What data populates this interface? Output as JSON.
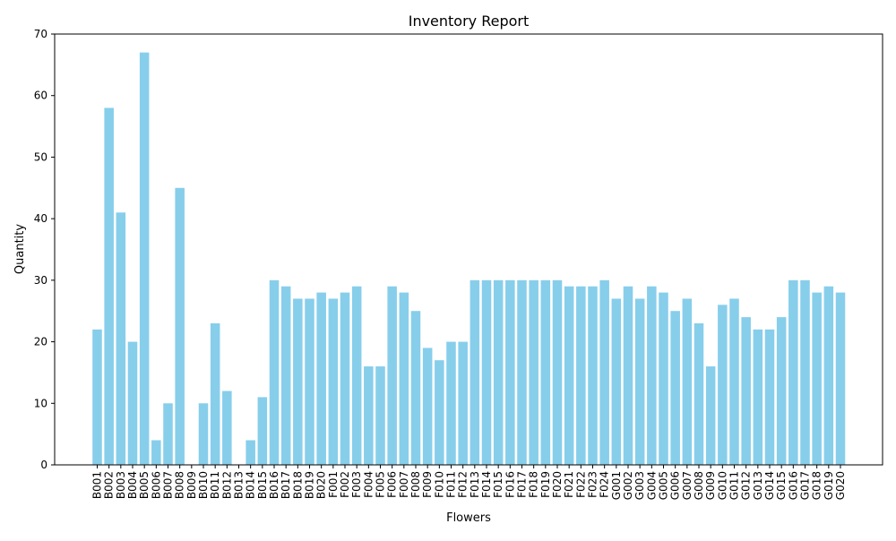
{
  "chart_data": {
    "type": "bar",
    "title": "Inventory Report",
    "xlabel": "Flowers",
    "ylabel": "Quantity",
    "ylim": [
      0,
      70
    ],
    "yticks": [
      0,
      10,
      20,
      30,
      40,
      50,
      60,
      70
    ],
    "bar_color": "#87ceeb",
    "categories": [
      "B001",
      "B002",
      "B003",
      "B004",
      "B005",
      "B006",
      "B007",
      "B008",
      "B009",
      "B010",
      "B011",
      "B012",
      "B013",
      "B014",
      "B015",
      "B016",
      "B017",
      "B018",
      "B019",
      "B020",
      "F001",
      "F002",
      "F003",
      "F004",
      "F005",
      "F006",
      "F007",
      "F008",
      "F009",
      "F010",
      "F011",
      "F012",
      "F013",
      "F014",
      "F015",
      "F016",
      "F017",
      "F018",
      "F019",
      "F020",
      "F021",
      "F022",
      "F023",
      "F024",
      "G001",
      "G002",
      "G003",
      "G004",
      "G005",
      "G006",
      "G007",
      "G008",
      "G009",
      "G010",
      "G011",
      "G012",
      "G013",
      "G014",
      "G015",
      "G016",
      "G017",
      "G018",
      "G019",
      "G020"
    ],
    "values": [
      22,
      58,
      41,
      20,
      67,
      4,
      10,
      45,
      0,
      10,
      23,
      12,
      0,
      4,
      11,
      30,
      29,
      27,
      27,
      28,
      27,
      28,
      29,
      16,
      16,
      29,
      28,
      25,
      19,
      17,
      20,
      20,
      30,
      30,
      30,
      30,
      30,
      30,
      30,
      30,
      29,
      29,
      29,
      30,
      27,
      29,
      27,
      29,
      28,
      25,
      27,
      23,
      16,
      26,
      27,
      24,
      22,
      22,
      24,
      30,
      30,
      28,
      29,
      28
    ]
  }
}
